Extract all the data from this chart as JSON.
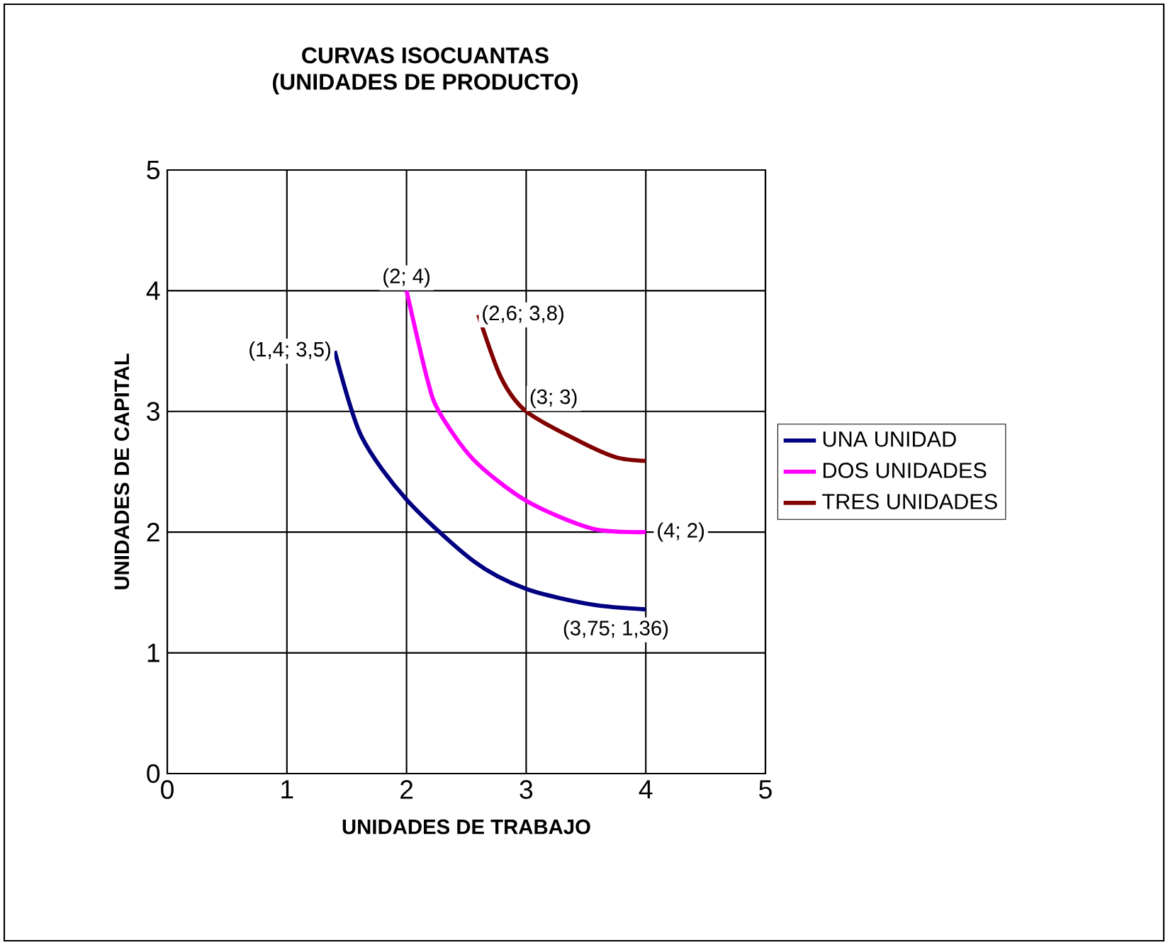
{
  "chart_data": {
    "type": "line",
    "title": "CURVAS ISOCUANTAS",
    "subtitle": "(UNIDADES DE PRODUCTO)",
    "xlabel": "UNIDADES DE TRABAJO",
    "ylabel": "UNIDADES DE CAPITAL",
    "xlim": [
      0,
      5
    ],
    "ylim": [
      0,
      5
    ],
    "xticks": [
      0,
      1,
      2,
      3,
      4,
      5
    ],
    "yticks": [
      0,
      1,
      2,
      3,
      4,
      5
    ],
    "grid": true,
    "legend": "right",
    "marker": "none",
    "line_style": "solid",
    "series": [
      {
        "name": "UNA UNIDAD",
        "color": "#000080",
        "x": [
          1.4,
          1.62,
          2.0,
          2.56,
          3.0,
          3.55,
          4.0
        ],
        "values": [
          3.5,
          2.8,
          2.27,
          1.76,
          1.53,
          1.4,
          1.36
        ]
      },
      {
        "name": "DOS UNIDADES",
        "color": "#ff00ff",
        "x": [
          2.0,
          2.17,
          2.27,
          2.56,
          3.0,
          3.55,
          4.0
        ],
        "values": [
          4.0,
          3.28,
          3.0,
          2.6,
          2.26,
          2.03,
          2.0
        ]
      },
      {
        "name": "TRES UNIDADES",
        "color": "#800000",
        "x": [
          2.6,
          2.79,
          3.0,
          3.43,
          3.75,
          4.0
        ],
        "values": [
          3.8,
          3.28,
          3.0,
          2.76,
          2.62,
          2.59
        ]
      }
    ],
    "annotations": [
      {
        "text": "(1,4; 3,5)",
        "x": 1.4,
        "y": 3.5
      },
      {
        "text": "(2; 4)",
        "x": 2,
        "y": 4
      },
      {
        "text": "(2,6; 3,8)",
        "x": 2.6,
        "y": 3.8
      },
      {
        "text": "(3; 3)",
        "x": 3,
        "y": 3
      },
      {
        "text": "(4; 2)",
        "x": 4,
        "y": 2
      },
      {
        "text": "(3,75; 1,36)",
        "x": 3.75,
        "y": 1.36
      }
    ]
  }
}
